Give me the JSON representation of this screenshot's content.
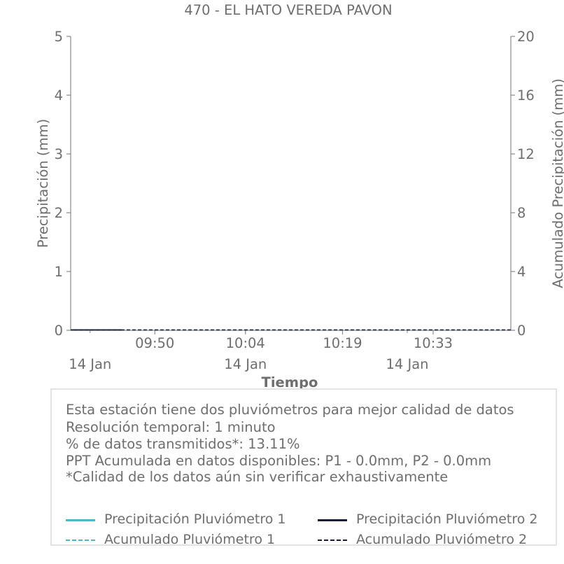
{
  "chart_data": {
    "type": "line",
    "title": "470 - EL HATO VEREDA PAVON",
    "xlabel": "Tiempo",
    "ylabel": "Precipitación (mm)",
    "y2label": "Acumulado Precipitación (mm)",
    "ylim": [
      0,
      5
    ],
    "y2lim": [
      0,
      20
    ],
    "yticks": [
      0,
      1,
      2,
      3,
      4,
      5
    ],
    "y2ticks": [
      0,
      4,
      8,
      12,
      16,
      20
    ],
    "xlim": [
      "09:37",
      "10:45"
    ],
    "xticks": [
      {
        "time": "09:50",
        "label": "09:50"
      },
      {
        "time": "10:04",
        "label": "10:04"
      },
      {
        "time": "10:19",
        "label": "10:19"
      },
      {
        "time": "10:33",
        "label": "10:33"
      }
    ],
    "date_ticks": [
      {
        "time": "09:40",
        "label": "14 Jan"
      },
      {
        "time": "10:04",
        "label": "14 Jan"
      },
      {
        "time": "10:29",
        "label": "14 Jan"
      }
    ],
    "grid": false,
    "series": [
      {
        "name": "Precipitación Pluviómetro 1",
        "axis": "left",
        "style": "solid",
        "color": "#4fb6c9",
        "x": [
          "09:37",
          "09:45"
        ],
        "y": [
          0,
          0
        ]
      },
      {
        "name": "Precipitación Pluviómetro 2",
        "axis": "left",
        "style": "solid",
        "color": "#1a1a3a",
        "x": [
          "09:37",
          "09:45"
        ],
        "y": [
          0,
          0
        ]
      },
      {
        "name": "Acumulado Pluviómetro 1",
        "axis": "right",
        "style": "dashed",
        "color": "#4fb6c9",
        "x": [
          "09:37",
          "10:45"
        ],
        "y": [
          0,
          0
        ]
      },
      {
        "name": "Acumulado Pluviómetro 2",
        "axis": "right",
        "style": "dashed",
        "color": "#1a1a3a",
        "x": [
          "09:37",
          "10:45"
        ],
        "y": [
          0,
          0
        ]
      }
    ]
  },
  "info": {
    "lines": [
      "Esta estación tiene dos pluviómetros para mejor calidad de datos",
      "Resolución temporal: 1 minuto",
      "% de datos transmitidos*: 13.11%",
      "PPT Acumulada en datos disponibles: P1 - 0.0mm, P2 - 0.0mm",
      "*Calidad de los datos aún sin verificar exhaustivamente"
    ]
  },
  "legend": {
    "placement": "bottom",
    "items": [
      {
        "label": "Precipitación Pluviómetro 1",
        "color": "#4fb6c9",
        "style": "solid"
      },
      {
        "label": "Precipitación Pluviómetro 2",
        "color": "#1a1a3a",
        "style": "solid"
      },
      {
        "label": "Acumulado Pluviómetro 1",
        "color": "#4fb6c9",
        "style": "dashed"
      },
      {
        "label": "Acumulado Pluviómetro 2",
        "color": "#1a1a3a",
        "style": "dashed"
      }
    ]
  }
}
